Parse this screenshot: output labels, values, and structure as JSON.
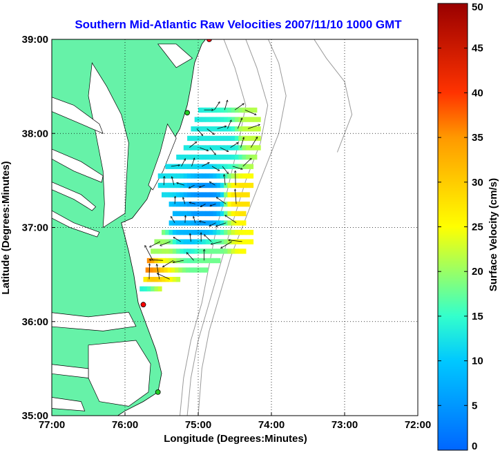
{
  "chart_data": {
    "type": "heatmap",
    "title": "Southern Mid-Atlantic Raw Velocities 2007/11/10 1000 GMT",
    "xlabel": "Longitude (Degrees:Minutes)",
    "ylabel": "Latitude (Degrees:Minutes)",
    "xlim": [
      -77,
      -72
    ],
    "ylim": [
      35,
      39
    ],
    "x_ticks": [
      {
        "value": -77,
        "label": "77:00"
      },
      {
        "value": -76,
        "label": "76:00"
      },
      {
        "value": -75,
        "label": "75:00"
      },
      {
        "value": -74,
        "label": "74:00"
      },
      {
        "value": -73,
        "label": "73:00"
      },
      {
        "value": -72,
        "label": "72:00"
      }
    ],
    "y_ticks": [
      {
        "value": 35,
        "label": "35:00"
      },
      {
        "value": 36,
        "label": "36:00"
      },
      {
        "value": 37,
        "label": "37:00"
      },
      {
        "value": 38,
        "label": "38:00"
      },
      {
        "value": 39,
        "label": "39:00"
      }
    ],
    "grid": true,
    "colorbar": {
      "label": "Surface Velocity (cm/s)",
      "range": [
        0,
        50
      ],
      "ticks": [
        "0",
        "5",
        "10",
        "15",
        "20",
        "25",
        "30",
        "35",
        "40",
        "45",
        "50"
      ],
      "placement": "right"
    },
    "field": [
      {
        "lon": -75.0,
        "lat": 37.2,
        "speed": 5
      },
      {
        "lon": -74.9,
        "lat": 37.3,
        "speed": 4
      },
      {
        "lon": -75.2,
        "lat": 37.1,
        "speed": 8
      },
      {
        "lon": -75.4,
        "lat": 37.5,
        "speed": 12
      },
      {
        "lon": -75.1,
        "lat": 37.9,
        "speed": 13
      },
      {
        "lon": -74.6,
        "lat": 37.9,
        "speed": 13
      },
      {
        "lon": -74.3,
        "lat": 38.0,
        "speed": 22
      },
      {
        "lon": -74.4,
        "lat": 37.3,
        "speed": 28
      },
      {
        "lon": -74.3,
        "lat": 36.8,
        "speed": 25
      },
      {
        "lon": -75.6,
        "lat": 36.8,
        "speed": 20
      },
      {
        "lon": -75.7,
        "lat": 36.6,
        "speed": 36
      },
      {
        "lon": -75.8,
        "lat": 36.3,
        "speed": 14
      },
      {
        "lon": -74.8,
        "lat": 36.6,
        "speed": 18
      }
    ],
    "stations": [
      {
        "lon": -74.85,
        "lat": 39.0,
        "color": "#ff0000"
      },
      {
        "lon": -75.15,
        "lat": 38.22,
        "color": "#22cc22"
      },
      {
        "lon": -75.75,
        "lat": 36.18,
        "color": "#ff0000"
      },
      {
        "lon": -75.55,
        "lat": 35.25,
        "color": "#22cc22"
      }
    ],
    "colors": {
      "land": "#66f2a8",
      "water": "#ffffff",
      "grid": "#000000",
      "bathymetry": "#999999",
      "title": "#0000ff"
    }
  }
}
